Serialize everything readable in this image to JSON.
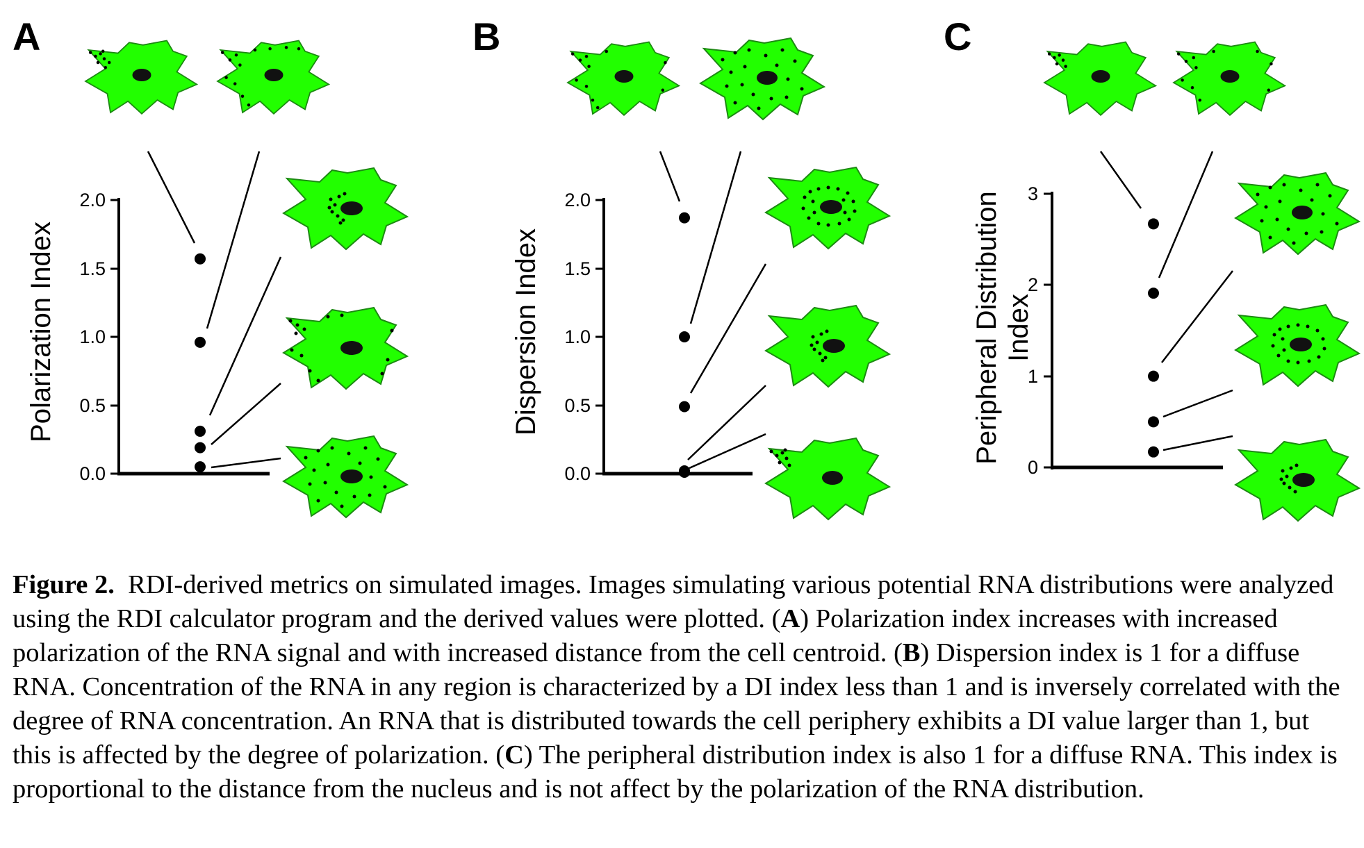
{
  "panels": [
    {
      "letter": "A",
      "ylabel": [
        "Polarization Index"
      ],
      "ticks": [
        "0.0",
        "0.5",
        "1.0",
        "1.5",
        "2.0"
      ]
    },
    {
      "letter": "B",
      "ylabel": [
        "Dispersion Index"
      ],
      "ticks": [
        "0.0",
        "0.5",
        "1.0",
        "1.5",
        "2.0"
      ]
    },
    {
      "letter": "C",
      "ylabel": [
        "Peripheral Distribution",
        "Index"
      ],
      "ticks": [
        "0",
        "1",
        "2",
        "3"
      ]
    }
  ],
  "chart_data": [
    {
      "type": "scatter",
      "panel": "A",
      "ylabel": "Polarization Index",
      "ylim": [
        0,
        2
      ],
      "yticks": [
        0,
        0.5,
        1.0,
        1.5,
        2.0
      ],
      "values": [
        1.57,
        0.96,
        0.31,
        0.19,
        0.05
      ]
    },
    {
      "type": "scatter",
      "panel": "B",
      "ylabel": "Dispersion Index",
      "ylim": [
        0,
        2
      ],
      "yticks": [
        0,
        0.5,
        1.0,
        1.5,
        2.0
      ],
      "values": [
        1.87,
        1.0,
        0.49,
        0.02,
        0.01
      ]
    },
    {
      "type": "scatter",
      "panel": "C",
      "ylabel": "Peripheral Distribution Index",
      "ylim": [
        0,
        3
      ],
      "yticks": [
        0,
        1,
        2,
        3
      ],
      "values": [
        2.67,
        1.91,
        1.0,
        0.5,
        0.17
      ]
    }
  ],
  "caption": {
    "label": "Figure 2.",
    "segments": [
      "RDI-derived metrics on simulated images. Images simulating various potential RNA distributions were analyzed using the RDI calculator program and the derived values were plotted. (",
      "A",
      ") Polarization index increases with increased polarization of the RNA signal and with increased distance from the cell centroid. (",
      "B",
      ") Dispersion index is 1 for a diffuse RNA. Concentration of the RNA in any region is characterized by a DI index less than 1 and is inversely correlated with the degree of RNA concentration. An RNA that is distributed towards the cell periphery exhibits a DI value larger than 1, but this is affected by the degree of polarization. (",
      "C",
      ") The peripheral distribution index is also 1 for a diffuse RNA. This index is proportional to the distance from the nucleus and is not affect by the polarization of the RNA distribution."
    ]
  },
  "colors": {
    "cell": "#22ff00",
    "cell_edge": "#1c8a12",
    "ink": "#000000"
  }
}
